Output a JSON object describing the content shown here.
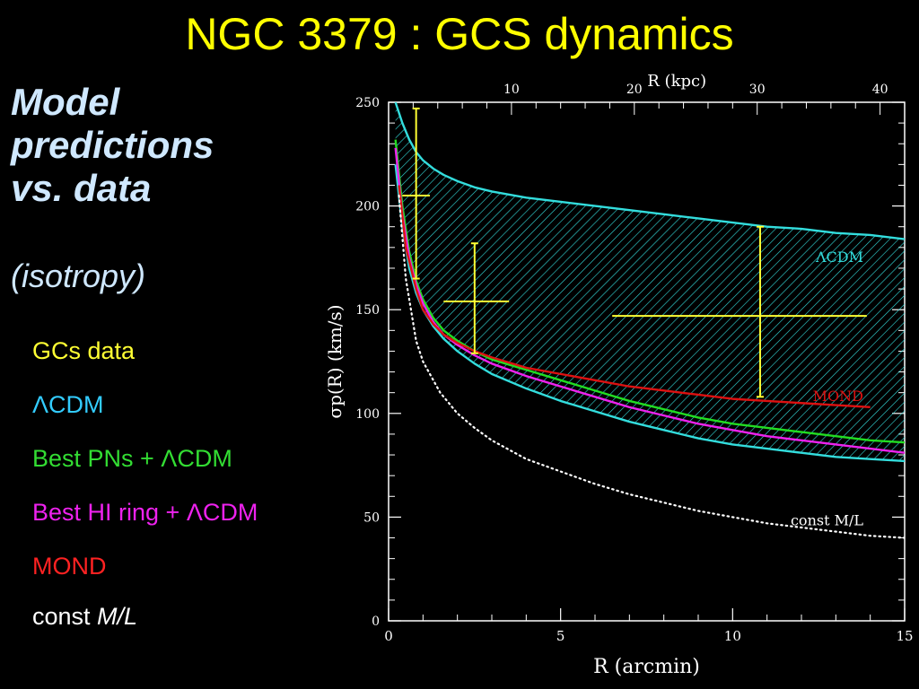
{
  "slide": {
    "title": "NGC 3379 : GCS dynamics",
    "subtitle_lines": [
      "Model",
      "predictions",
      "vs. data"
    ],
    "subtitle_note": "(isotropy)"
  },
  "legend": [
    {
      "text": "GCs data",
      "color": "#ffff33"
    },
    {
      "text": "ΛCDM",
      "color": "#33ccff"
    },
    {
      "text": "Best PNs + ΛCDM",
      "color": "#33dd33"
    },
    {
      "text": "Best HI ring + ΛCDM",
      "color": "#ee22ee"
    },
    {
      "text": "MOND",
      "color": "#ff2222"
    },
    {
      "text_prefix": "const ",
      "text_italic": "M/L",
      "color": "#ffffff"
    }
  ],
  "chart_data": {
    "type": "line",
    "xlabel": "R (arcmin)",
    "ylabel": "σp(R) (km/s)",
    "top_axis_label": "R (kpc)",
    "xlim": [
      0,
      15
    ],
    "ylim": [
      0,
      250
    ],
    "x_ticks": [
      0,
      5,
      10,
      15
    ],
    "y_ticks": [
      0,
      50,
      100,
      150,
      200,
      250
    ],
    "top_ticks_kpc": [
      10,
      20,
      30,
      40
    ],
    "kpc_per_arcmin": 2.8,
    "series": [
      {
        "name": "ΛCDM",
        "color": "#33dddd",
        "role": "band_upper",
        "x": [
          0.2,
          0.4,
          0.6,
          0.8,
          1.0,
          1.3,
          1.6,
          2.0,
          2.5,
          3,
          4,
          5,
          6,
          7,
          8,
          9,
          10,
          11,
          12,
          13,
          14,
          15
        ],
        "y": [
          250,
          240,
          232,
          226,
          222,
          218,
          215,
          212,
          209,
          207,
          204,
          202,
          200,
          198,
          196,
          194,
          192,
          190,
          189,
          187,
          186,
          184
        ]
      },
      {
        "name": "ΛCDM",
        "color": "#33dddd",
        "role": "band_lower",
        "x": [
          0.2,
          0.4,
          0.6,
          0.8,
          1.0,
          1.3,
          1.6,
          2.0,
          2.5,
          3,
          4,
          5,
          6,
          7,
          8,
          9,
          10,
          11,
          12,
          13,
          14,
          15
        ],
        "y": [
          220,
          190,
          170,
          158,
          150,
          142,
          136,
          130,
          124,
          119,
          112,
          106,
          101,
          96,
          92,
          88,
          85,
          83,
          81,
          79,
          78,
          77
        ]
      },
      {
        "name": "Best PNs + ΛCDM",
        "color": "#22dd22",
        "x": [
          0.2,
          0.4,
          0.6,
          0.8,
          1.0,
          1.3,
          1.6,
          2.0,
          2.5,
          3,
          4,
          5,
          6,
          7,
          8,
          9,
          10,
          11,
          12,
          13,
          14,
          15
        ],
        "y": [
          232,
          200,
          178,
          164,
          155,
          146,
          140,
          135,
          130,
          126,
          121,
          116,
          111,
          106,
          102,
          98,
          95,
          93,
          91,
          89,
          87,
          86
        ]
      },
      {
        "name": "Best HI ring + ΛCDM",
        "color": "#ee22ee",
        "x": [
          0.2,
          0.4,
          0.6,
          0.8,
          1.0,
          1.3,
          1.6,
          2.0,
          2.5,
          3,
          4,
          5,
          6,
          7,
          8,
          9,
          10,
          11,
          12,
          13,
          14,
          15
        ],
        "y": [
          228,
          196,
          175,
          162,
          153,
          144,
          138,
          133,
          128,
          124,
          118,
          113,
          108,
          103,
          99,
          95,
          92,
          89,
          87,
          85,
          83,
          81
        ]
      },
      {
        "name": "MOND",
        "color": "#dd1111",
        "x": [
          0.3,
          0.5,
          0.8,
          1.0,
          1.3,
          1.6,
          2.0,
          2.5,
          3,
          4,
          5,
          6,
          7,
          8,
          9,
          10,
          11,
          12,
          13,
          14
        ],
        "y": [
          210,
          180,
          160,
          150,
          143,
          138,
          134,
          130,
          127,
          122,
          119,
          116,
          113,
          111,
          109,
          107,
          106,
          105,
          104,
          103
        ]
      },
      {
        "name": "const M/L",
        "color": "#ffffff",
        "dotted": true,
        "x": [
          0.3,
          0.5,
          0.8,
          1.0,
          1.5,
          2.0,
          2.5,
          3,
          4,
          5,
          6,
          7,
          8,
          9,
          10,
          11,
          12,
          13,
          14,
          15
        ],
        "y": [
          205,
          165,
          135,
          125,
          110,
          100,
          93,
          87,
          78,
          72,
          66,
          61,
          57,
          53,
          50,
          47,
          45,
          43,
          41,
          40
        ]
      }
    ],
    "band_fill_color": "#33dddd",
    "curve_labels": [
      {
        "text": "ΛCDM",
        "color": "#33dddd",
        "x": 13.8,
        "y": 173
      },
      {
        "text": "MOND",
        "color": "#dd1111",
        "x": 13.8,
        "y": 106
      },
      {
        "text": "const M/L",
        "color": "#ffffff",
        "x": 13.8,
        "y": 46
      }
    ],
    "data_points": {
      "name": "GCs data",
      "color": "#ffff33",
      "points": [
        {
          "x": 0.8,
          "y": 205,
          "xerr": [
            0.4,
            1.2
          ],
          "yerr": [
            165,
            247
          ]
        },
        {
          "x": 2.5,
          "y": 154,
          "xerr": [
            1.6,
            3.5
          ],
          "yerr": [
            129,
            182
          ]
        },
        {
          "x": 10.8,
          "y": 147,
          "xerr": [
            6.5,
            13.9
          ],
          "yerr": [
            108,
            190
          ]
        }
      ]
    }
  }
}
